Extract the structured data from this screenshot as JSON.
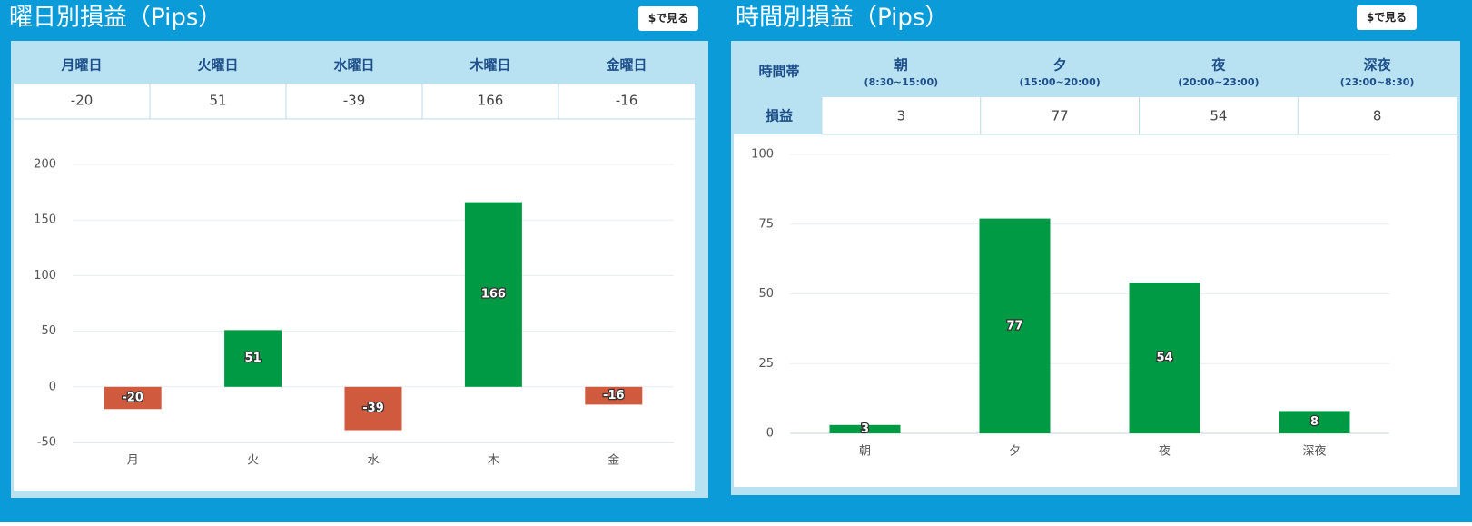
{
  "panels": [
    {
      "title": "曜日別損益（Pips）",
      "button": "$で見る",
      "table": {
        "headers": [
          "月曜日",
          "火曜日",
          "水曜日",
          "木曜日",
          "金曜日"
        ]
      }
    },
    {
      "title": "時間別損益（Pips）",
      "button": "$で見る",
      "table": {
        "corner": "時間帯",
        "row_label": "損益",
        "sublabels": [
          "(8:30~15:00)",
          "(15:00~20:00)",
          "(20:00~23:00)",
          "(23:00~8:30)"
        ]
      }
    }
  ],
  "chart_data": [
    {
      "type": "bar",
      "categories": [
        "月",
        "火",
        "水",
        "木",
        "金"
      ],
      "values": [
        -20,
        51,
        -39,
        166,
        -16
      ],
      "positive_color": "#009a44",
      "negative_color": "#d05a3e",
      "ylim": [
        -50,
        200
      ],
      "yticks": [
        -50,
        0,
        50,
        100,
        150,
        200
      ],
      "grid": true
    },
    {
      "type": "bar",
      "categories": [
        "朝",
        "夕",
        "夜",
        "深夜"
      ],
      "values": [
        3,
        77,
        54,
        8
      ],
      "positive_color": "#009a44",
      "negative_color": "#d05a3e",
      "ylim": [
        0,
        100
      ],
      "yticks": [
        0,
        25,
        50,
        75,
        100
      ],
      "grid": true
    }
  ]
}
